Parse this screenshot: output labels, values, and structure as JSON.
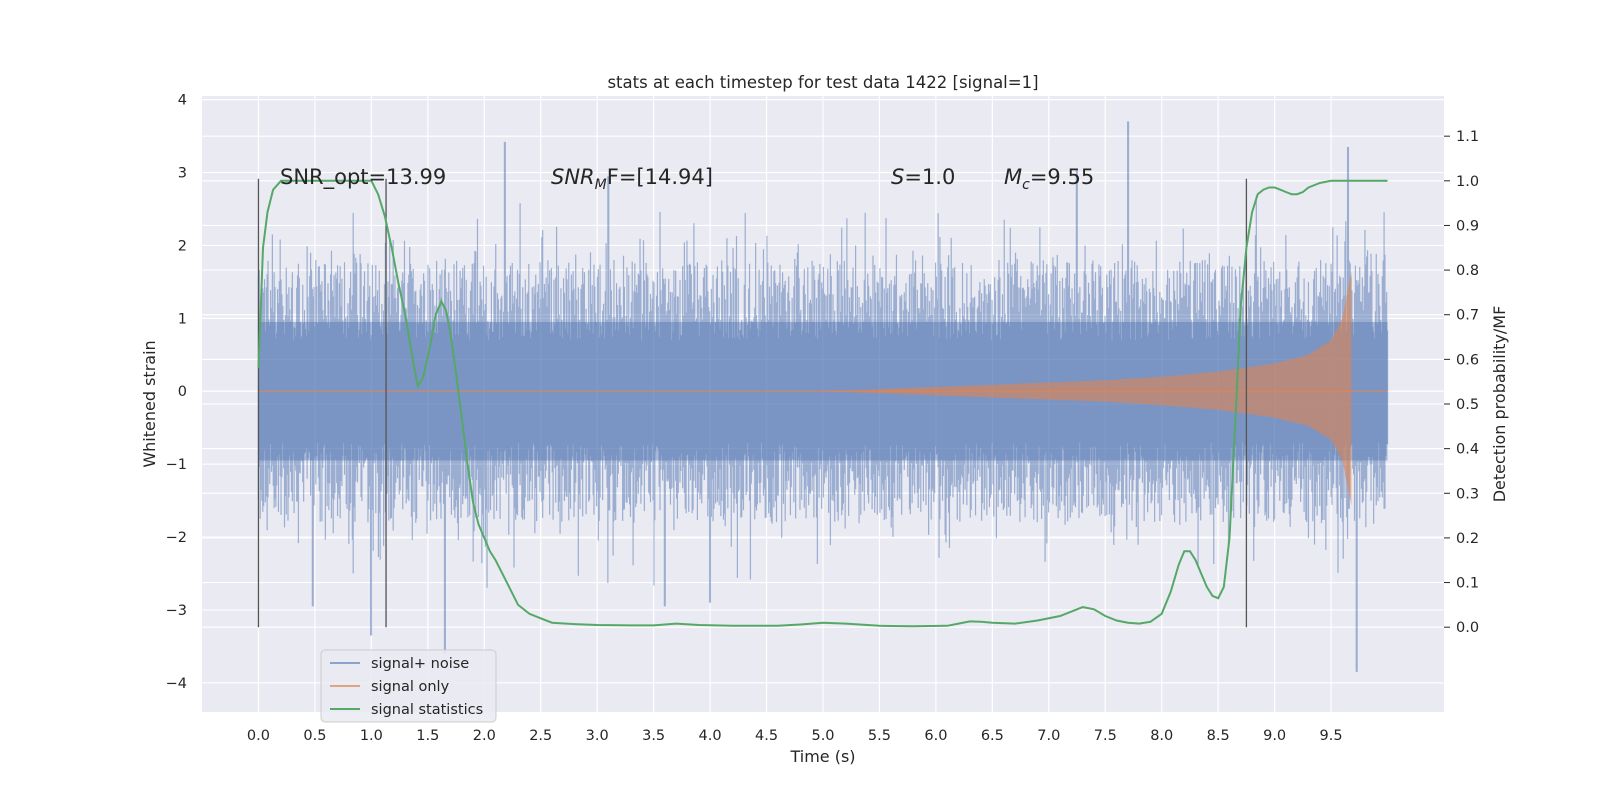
{
  "chart_data": {
    "type": "line",
    "title": "stats at each timestep for test data 1422 [signal=1]",
    "xlabel": "Time (s)",
    "ylabel": "Whitened strain",
    "ylabel_right": "Detection probability/MF",
    "xlim": [
      -0.5,
      10.5
    ],
    "ylim": [
      -4.4,
      4.05
    ],
    "ylim_right": [
      -0.19,
      1.19
    ],
    "xticks": [
      "0.0",
      "0.5",
      "1.0",
      "1.5",
      "2.0",
      "2.5",
      "3.0",
      "3.5",
      "4.0",
      "4.5",
      "5.0",
      "5.5",
      "6.0",
      "6.5",
      "7.0",
      "7.5",
      "8.0",
      "8.5",
      "9.0",
      "9.5"
    ],
    "yticks": [
      "4",
      "3",
      "2",
      "1",
      "0",
      "−1",
      "−2",
      "−3",
      "−4"
    ],
    "yticks_right": [
      "1.1",
      "1.0",
      "0.9",
      "0.8",
      "0.7",
      "0.6",
      "0.5",
      "0.4",
      "0.3",
      "0.2",
      "0.1",
      "0.0"
    ],
    "grid": true,
    "legend_position": "lower-left",
    "annotations": {
      "snr_opt": "SNR_opt=13.99",
      "snr_mf_var": "SNR",
      "snr_mf_sub": "M",
      "snr_mf_rest": "F=[14.94]",
      "s_var": "S",
      "s_rest": "=1.0",
      "mc_var": "M",
      "mc_sub": "c",
      "mc_rest": "=9.55"
    },
    "vertical_markers": [
      0.0,
      1.13,
      8.75
    ],
    "series": [
      {
        "name": "signal+ noise",
        "color": "#4c72b0",
        "axis": "left",
        "description": "whitened strain samples over 0.0 to 10.0 s",
        "x_range": [
          0.0,
          10.0
        ],
        "typical_peak_abs": 2.1,
        "max": 3.7,
        "min": -3.85
      },
      {
        "name": "signal only",
        "color": "#dd8452",
        "axis": "left",
        "envelope_x": [
          0.0,
          5.0,
          5.5,
          6.0,
          6.5,
          7.0,
          7.5,
          8.0,
          8.5,
          9.0,
          9.3,
          9.5,
          9.6,
          9.68
        ],
        "envelope_amp": [
          0.0,
          0.0,
          0.03,
          0.06,
          0.09,
          0.12,
          0.15,
          0.2,
          0.27,
          0.38,
          0.5,
          0.7,
          1.0,
          1.65
        ],
        "x_end": 10.0
      },
      {
        "name": "signal statistics",
        "color": "#55a868",
        "axis": "right",
        "x": [
          0.0,
          0.04,
          0.08,
          0.13,
          0.2,
          0.3,
          0.5,
          0.7,
          0.9,
          1.0,
          1.06,
          1.12,
          1.18,
          1.24,
          1.3,
          1.36,
          1.41,
          1.46,
          1.52,
          1.57,
          1.62,
          1.66,
          1.7,
          1.75,
          1.8,
          1.85,
          1.9,
          1.95,
          2.0,
          2.05,
          2.1,
          2.2,
          2.3,
          2.4,
          2.5,
          2.6,
          2.8,
          3.0,
          3.3,
          3.5,
          3.7,
          3.9,
          4.2,
          4.6,
          4.8,
          5.0,
          5.2,
          5.5,
          5.8,
          6.1,
          6.2,
          6.3,
          6.4,
          6.5,
          6.7,
          6.9,
          7.1,
          7.2,
          7.3,
          7.4,
          7.5,
          7.6,
          7.7,
          7.8,
          7.9,
          8.0,
          8.08,
          8.15,
          8.2,
          8.25,
          8.3,
          8.35,
          8.4,
          8.45,
          8.5,
          8.55,
          8.6,
          8.65,
          8.7,
          8.75,
          8.8,
          8.85,
          8.9,
          8.95,
          9.0,
          9.05,
          9.1,
          9.15,
          9.2,
          9.25,
          9.3,
          9.4,
          9.5,
          9.6,
          9.7,
          10.0
        ],
        "y": [
          0.58,
          0.85,
          0.93,
          0.98,
          1.0,
          1.0,
          1.0,
          1.0,
          1.0,
          1.0,
          0.97,
          0.92,
          0.85,
          0.77,
          0.7,
          0.61,
          0.54,
          0.56,
          0.63,
          0.7,
          0.73,
          0.71,
          0.66,
          0.57,
          0.47,
          0.37,
          0.28,
          0.23,
          0.2,
          0.17,
          0.15,
          0.1,
          0.05,
          0.03,
          0.02,
          0.01,
          0.007,
          0.005,
          0.004,
          0.004,
          0.008,
          0.005,
          0.003,
          0.003,
          0.006,
          0.01,
          0.008,
          0.003,
          0.002,
          0.003,
          0.008,
          0.013,
          0.012,
          0.01,
          0.008,
          0.015,
          0.025,
          0.035,
          0.045,
          0.04,
          0.025,
          0.015,
          0.01,
          0.008,
          0.012,
          0.03,
          0.08,
          0.14,
          0.17,
          0.17,
          0.15,
          0.12,
          0.09,
          0.07,
          0.065,
          0.09,
          0.2,
          0.45,
          0.72,
          0.85,
          0.93,
          0.97,
          0.98,
          0.985,
          0.985,
          0.98,
          0.975,
          0.97,
          0.97,
          0.975,
          0.985,
          0.995,
          1.0,
          1.0,
          1.0,
          1.0
        ]
      }
    ]
  }
}
